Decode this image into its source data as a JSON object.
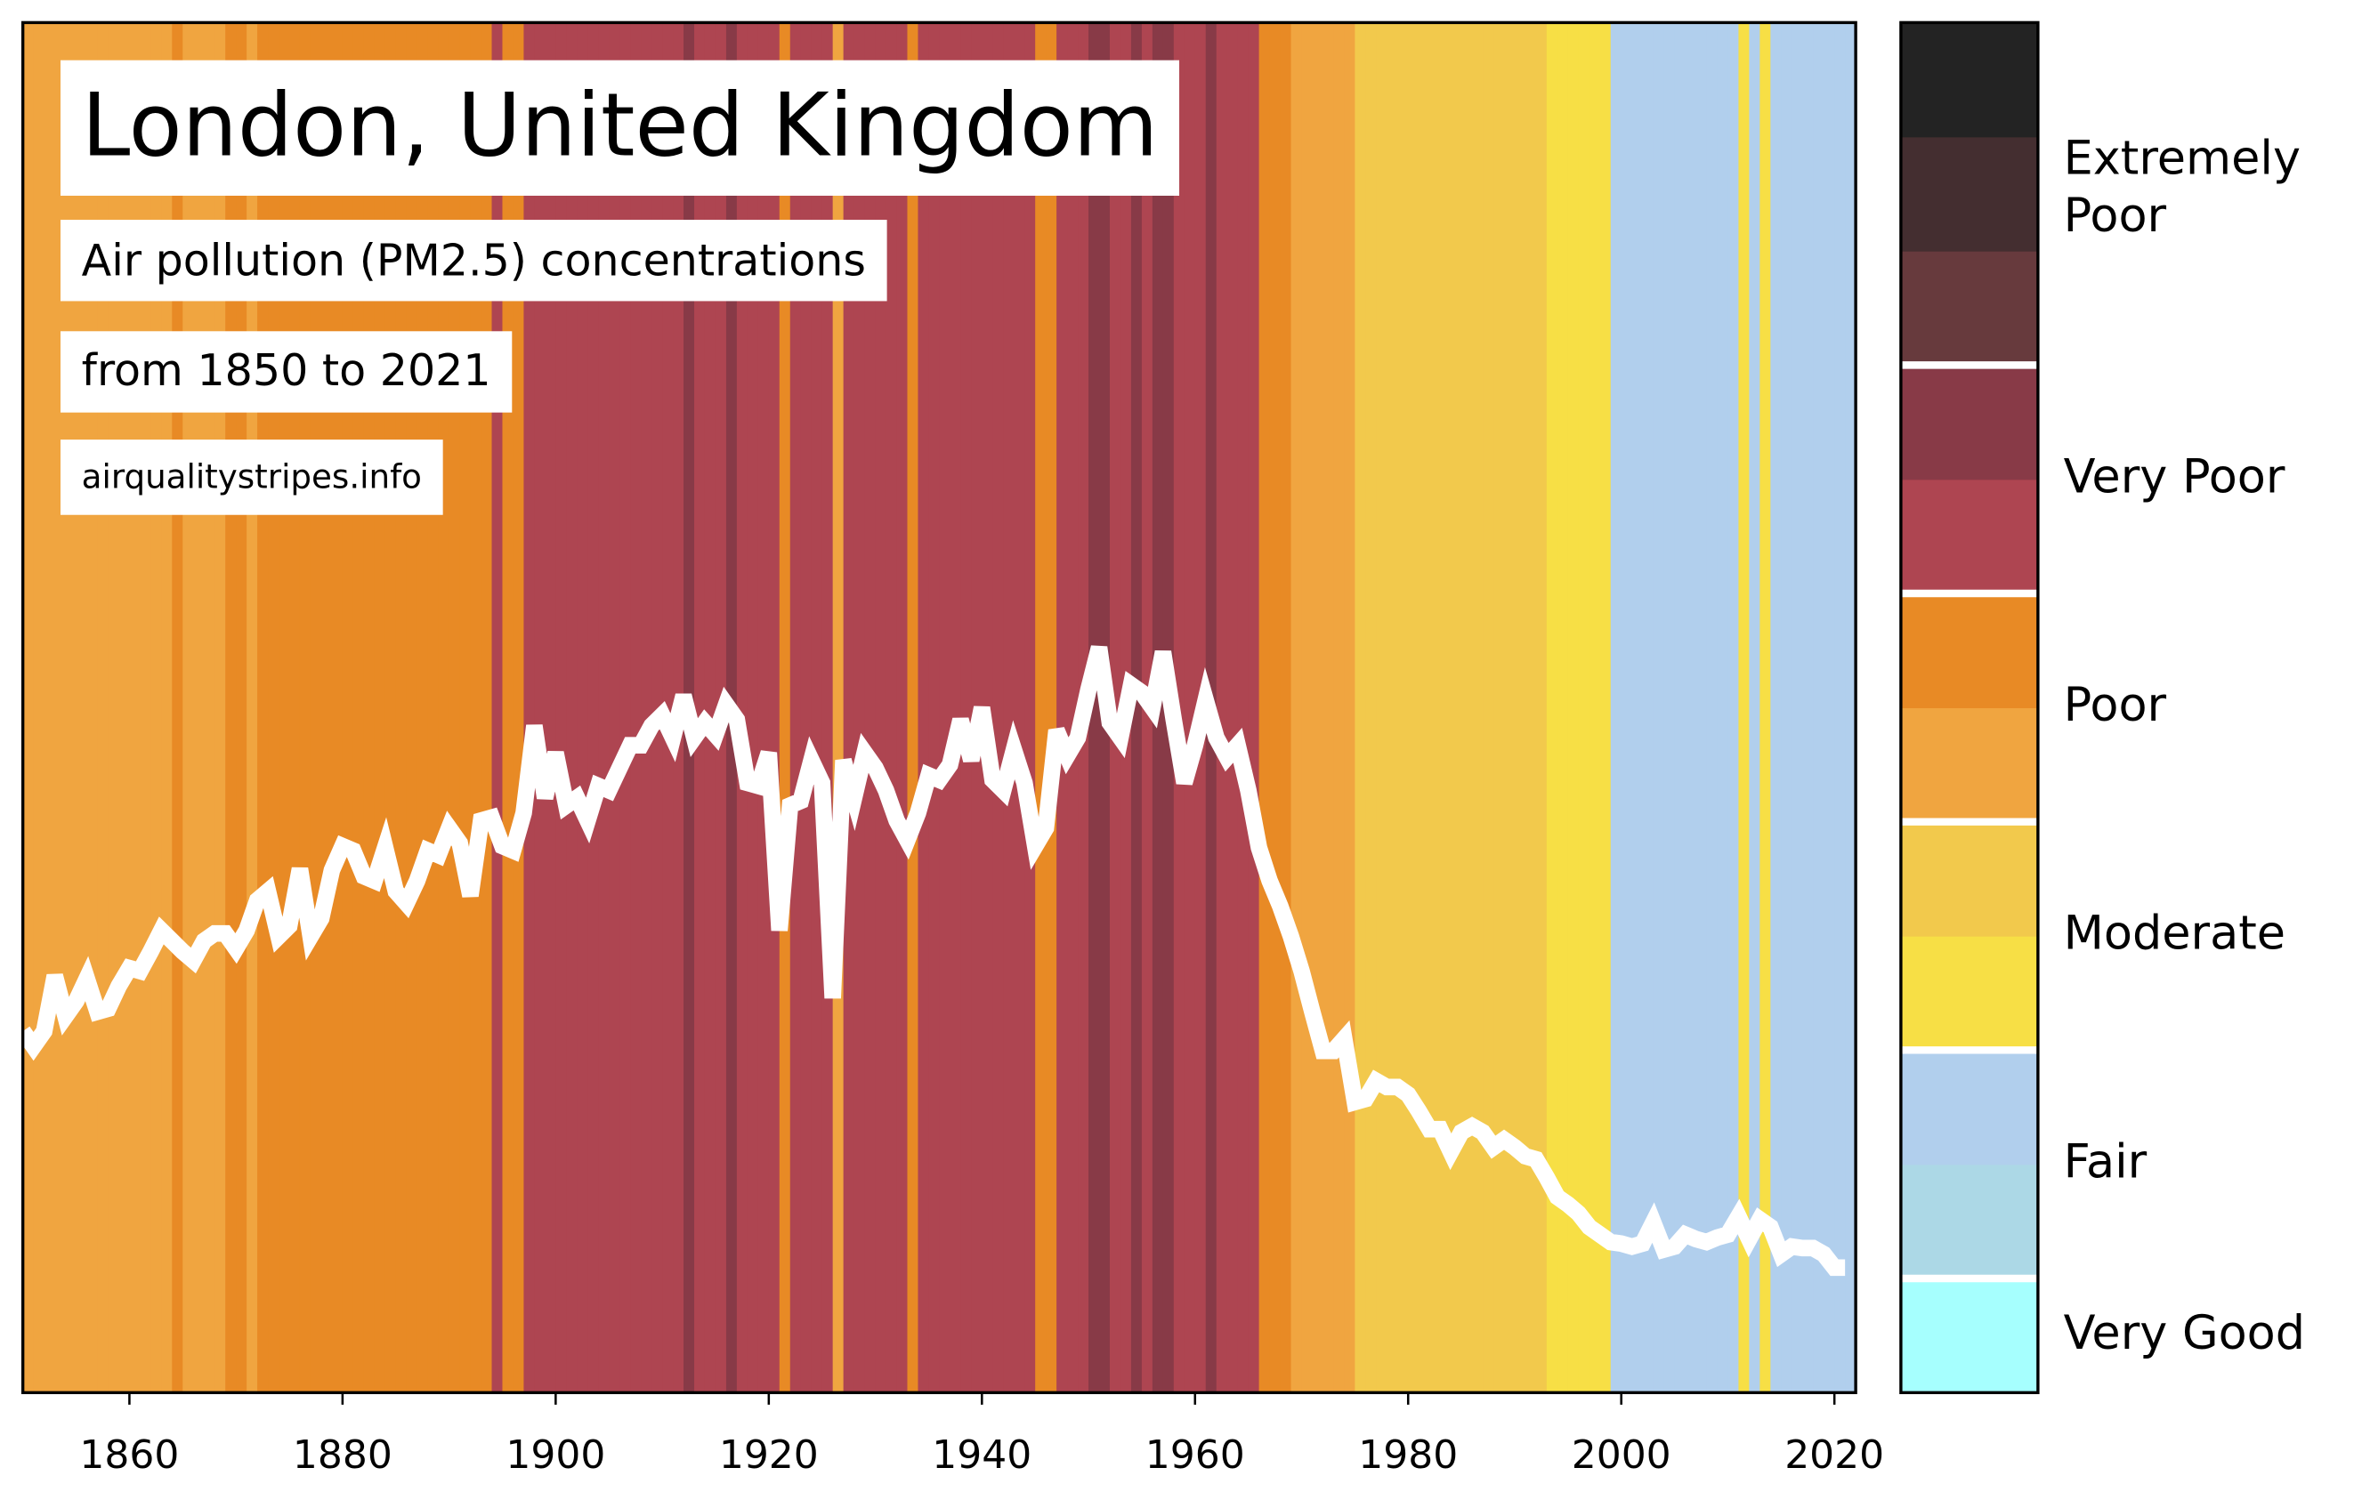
{
  "chart_data": {
    "type": "line",
    "title": "London, United Kingdom",
    "subtitle": "Air pollution (PM2.5) concentrations",
    "period": "from 1850 to 2021",
    "source": "airqualitystripes.info",
    "line_color": "#ffffff",
    "xlim": [
      1850,
      2022
    ],
    "ylim": [
      0,
      91
    ],
    "xticks": [
      1860,
      1880,
      1900,
      1920,
      1940,
      1960,
      1980,
      2000,
      2020
    ],
    "x": [
      1850,
      1851,
      1852,
      1853,
      1854,
      1855,
      1856,
      1857,
      1858,
      1859,
      1860,
      1861,
      1862,
      1863,
      1864,
      1865,
      1866,
      1867,
      1868,
      1869,
      1870,
      1871,
      1872,
      1873,
      1874,
      1875,
      1876,
      1877,
      1878,
      1879,
      1880,
      1881,
      1882,
      1883,
      1884,
      1885,
      1886,
      1887,
      1888,
      1889,
      1890,
      1891,
      1892,
      1893,
      1894,
      1895,
      1896,
      1897,
      1898,
      1899,
      1900,
      1901,
      1902,
      1903,
      1904,
      1905,
      1906,
      1907,
      1908,
      1909,
      1910,
      1911,
      1912,
      1913,
      1914,
      1915,
      1916,
      1917,
      1918,
      1919,
      1920,
      1921,
      1922,
      1923,
      1924,
      1925,
      1926,
      1927,
      1928,
      1929,
      1930,
      1931,
      1932,
      1933,
      1934,
      1935,
      1936,
      1937,
      1938,
      1939,
      1940,
      1941,
      1942,
      1943,
      1944,
      1945,
      1946,
      1947,
      1948,
      1949,
      1950,
      1951,
      1952,
      1953,
      1954,
      1955,
      1956,
      1957,
      1958,
      1959,
      1960,
      1961,
      1962,
      1963,
      1964,
      1965,
      1966,
      1967,
      1968,
      1969,
      1970,
      1971,
      1972,
      1973,
      1974,
      1975,
      1976,
      1977,
      1978,
      1979,
      1980,
      1981,
      1982,
      1983,
      1984,
      1985,
      1986,
      1987,
      1988,
      1989,
      1990,
      1991,
      1992,
      1993,
      1994,
      1995,
      1996,
      1997,
      1998,
      1999,
      2000,
      2001,
      2002,
      2003,
      2004,
      2005,
      2006,
      2007,
      2008,
      2009,
      2010,
      2011,
      2012,
      2013,
      2014,
      2015,
      2016,
      2017,
      2018,
      2019,
      2020,
      2021
    ],
    "values": [
      24.0,
      23.0,
      24.0,
      27.7,
      25.0,
      26.0,
      27.5,
      25.3,
      25.5,
      27.0,
      28.2,
      28.0,
      29.3,
      30.7,
      30.0,
      29.3,
      28.7,
      30.0,
      30.5,
      30.5,
      29.5,
      30.7,
      32.7,
      33.3,
      30.3,
      31.0,
      34.8,
      30.3,
      31.5,
      34.7,
      36.3,
      36.0,
      34.3,
      34.0,
      36.2,
      33.3,
      32.5,
      34.0,
      36.0,
      35.7,
      37.5,
      36.5,
      33.0,
      38.0,
      38.2,
      36.3,
      36.0,
      38.5,
      44.3,
      39.5,
      42.5,
      39.0,
      39.5,
      38.0,
      40.3,
      40.0,
      41.5,
      43.0,
      43.0,
      44.3,
      45.0,
      43.5,
      46.3,
      43.5,
      44.5,
      43.7,
      45.7,
      44.7,
      40.5,
      40.3,
      42.5,
      30.7,
      39.0,
      39.3,
      42.0,
      40.5,
      26.2,
      42.0,
      39.5,
      42.5,
      41.5,
      40.0,
      38.0,
      36.7,
      38.5,
      41.0,
      40.7,
      41.7,
      44.7,
      42.0,
      45.5,
      40.7,
      40.0,
      42.7,
      40.5,
      36.3,
      37.5,
      44.0,
      42.3,
      43.5,
      46.7,
      49.5,
      44.5,
      43.5,
      47.0,
      46.5,
      45.5,
      49.2,
      44.7,
      40.5,
      43.0,
      46.0,
      43.5,
      42.2,
      43.0,
      40.0,
      36.2,
      34.0,
      32.3,
      30.3,
      28.0,
      25.3,
      22.7,
      22.7,
      23.5,
      19.3,
      19.5,
      20.7,
      20.3,
      20.3,
      19.8,
      18.7,
      17.5,
      17.5,
      16.0,
      17.3,
      17.7,
      17.3,
      16.3,
      16.8,
      16.3,
      15.7,
      15.5,
      14.3,
      13.0,
      12.5,
      11.9,
      11.0,
      10.5,
      10.0,
      9.9,
      9.7,
      9.9,
      11.3,
      9.5,
      9.7,
      10.5,
      10.2,
      10.0,
      10.3,
      10.5,
      11.7,
      10.2,
      11.5,
      11.0,
      9.2,
      9.7,
      9.6,
      9.6,
      9.2,
      8.3,
      8.3
    ],
    "stripe_colors": [
      "#f0a540",
      "#f0a540",
      "#f0a540",
      "#f0a540",
      "#f0a540",
      "#f0a540",
      "#f0a540",
      "#f0a540",
      "#f0a540",
      "#f0a540",
      "#f0a540",
      "#f0a540",
      "#f0a540",
      "#f0a540",
      "#e88a25",
      "#f0a540",
      "#f0a540",
      "#f0a540",
      "#f0a540",
      "#e88a25",
      "#e88a25",
      "#f0a540",
      "#e88a25",
      "#e88a25",
      "#e88a25",
      "#e88a25",
      "#e88a25",
      "#e88a25",
      "#e88a25",
      "#e88a25",
      "#e88a25",
      "#e88a25",
      "#e88a25",
      "#e88a25",
      "#e88a25",
      "#e88a25",
      "#e88a25",
      "#e88a25",
      "#e88a25",
      "#e88a25",
      "#e88a25",
      "#e88a25",
      "#e88a25",
      "#e88a25",
      "#ae4551",
      "#e88a25",
      "#e88a25",
      "#ae4551",
      "#ae4551",
      "#ae4551",
      "#ae4551",
      "#ae4551",
      "#ae4551",
      "#ae4551",
      "#ae4551",
      "#ae4551",
      "#ae4551",
      "#ae4551",
      "#ae4551",
      "#ae4551",
      "#ae4551",
      "#ae4551",
      "#883a47",
      "#ae4551",
      "#ae4551",
      "#ae4551",
      "#883a47",
      "#ae4551",
      "#ae4551",
      "#ae4551",
      "#ae4551",
      "#e88a25",
      "#ae4551",
      "#ae4551",
      "#ae4551",
      "#ae4551",
      "#f0a540",
      "#ae4551",
      "#ae4551",
      "#ae4551",
      "#ae4551",
      "#ae4551",
      "#ae4551",
      "#e88a25",
      "#ae4551",
      "#ae4551",
      "#ae4551",
      "#ae4551",
      "#ae4551",
      "#ae4551",
      "#ae4551",
      "#ae4551",
      "#ae4551",
      "#ae4551",
      "#ae4551",
      "#e88a25",
      "#e88a25",
      "#ae4551",
      "#ae4551",
      "#ae4551",
      "#883a47",
      "#883a47",
      "#ae4551",
      "#ae4551",
      "#883a47",
      "#ae4551",
      "#883a47",
      "#883a47",
      "#ae4551",
      "#ae4551",
      "#ae4551",
      "#883a47",
      "#ae4551",
      "#ae4551",
      "#ae4551",
      "#ae4551",
      "#e88a25",
      "#e88a25",
      "#e88a25",
      "#f0a540",
      "#f0a540",
      "#f0a540",
      "#f0a540",
      "#f0a540",
      "#f0a540",
      "#f2c94c",
      "#f2c94c",
      "#f2c94c",
      "#f2c94c",
      "#f2c94c",
      "#f2c94c",
      "#f2c94c",
      "#f2c94c",
      "#f2c94c",
      "#f2c94c",
      "#f2c94c",
      "#f2c94c",
      "#f2c94c",
      "#f2c94c",
      "#f2c94c",
      "#f2c94c",
      "#f2c94c",
      "#f2c94c",
      "#f7df45",
      "#f7df45",
      "#f7df45",
      "#f7df45",
      "#f7df45",
      "#f7df45",
      "#b1cfed",
      "#b1cfed",
      "#b1cfed",
      "#b1cfed",
      "#b1cfed",
      "#b1cfed",
      "#b1cfed",
      "#b1cfed",
      "#b1cfed",
      "#b1cfed",
      "#b1cfed",
      "#b1cfed",
      "#f7df45",
      "#b1cfed",
      "#f7df45",
      "#b1cfed",
      "#b1cfed",
      "#b1cfed",
      "#b1cfed",
      "#b1cfed",
      "#b1cfed",
      "#b1cfed",
      "#b1cfed"
    ],
    "colorbar": [
      {
        "label": "Very Good",
        "colors": [
          "#a6fffe"
        ]
      },
      {
        "label": "Fair",
        "colors": [
          "#acd8e6",
          "#b1cfed"
        ]
      },
      {
        "label": "Moderate",
        "colors": [
          "#f7df45",
          "#f2c94c"
        ]
      },
      {
        "label": "Poor",
        "colors": [
          "#f0a540",
          "#e88a25"
        ]
      },
      {
        "label": "Very Poor",
        "colors": [
          "#ae4551",
          "#883a47"
        ]
      },
      {
        "label": "Extremely Poor",
        "colors": [
          "#673a3d",
          "#442e30",
          "#232323"
        ]
      }
    ]
  }
}
